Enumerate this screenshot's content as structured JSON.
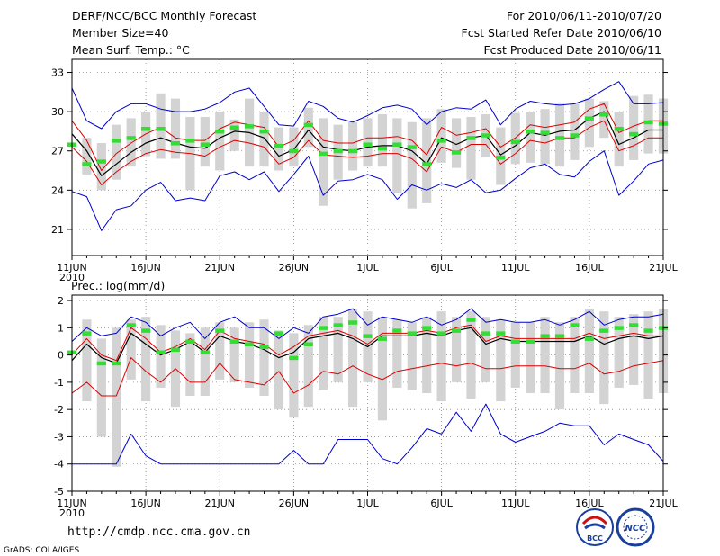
{
  "header": {
    "title": "DERF/NCC/BCC Monthly Forecast",
    "member_size": "Member Size=40",
    "variable": "Mean Surf. Temp.: °C",
    "period": "For 2010/06/11-2010/07/20",
    "fcst_started": "Fcst Started Refer Date 2010/06/10",
    "fcst_produced": "Fcst Produced Date 2010/06/11"
  },
  "footer": {
    "url": "http://cmdp.ncc.cma.gov.cn",
    "grads": "GrADS: COLA/IGES",
    "logo_left_text": "BCC",
    "logo_right_text": "NCC"
  },
  "colors": {
    "envelope": "#0000cc",
    "spread": "#dd0000",
    "mean": "#000000",
    "box": "#d3d3d3",
    "marker": "#33dd33",
    "grid": "#888888"
  },
  "chart_data": [
    {
      "type": "line",
      "title": "Mean Surf. Temp.: °C",
      "x_tick_labels": [
        "11JUN",
        "16JUN",
        "21JUN",
        "26JUN",
        "1JUL",
        "6JUL",
        "11JUL",
        "16JUL",
        "21JUL"
      ],
      "x_year_label": "2010",
      "x_range": [
        0,
        40
      ],
      "y_range": [
        19,
        34
      ],
      "y_ticks": [
        21,
        24,
        27,
        30,
        33
      ],
      "y_tick_labels": [
        "21",
        "24",
        "27",
        "30",
        "33"
      ],
      "grid": true,
      "series": [
        {
          "name": "max",
          "role": "envelope",
          "values": [
            31.8,
            29.3,
            28.7,
            30.0,
            30.6,
            30.6,
            30.2,
            30.0,
            30.0,
            30.2,
            30.7,
            31.5,
            31.8,
            30.4,
            29.0,
            28.9,
            30.8,
            30.4,
            29.5,
            29.2,
            29.7,
            30.3,
            30.5,
            30.2,
            29.0,
            30.0,
            30.3,
            30.2,
            30.9,
            29.0,
            30.2,
            30.8,
            30.6,
            30.5,
            30.6,
            31.0,
            31.7,
            32.3,
            30.6,
            30.6,
            30.7
          ]
        },
        {
          "name": "upper",
          "role": "spread",
          "values": [
            29.3,
            27.8,
            25.5,
            26.8,
            27.6,
            28.3,
            28.8,
            28.0,
            27.8,
            27.8,
            28.7,
            29.2,
            29.0,
            28.8,
            27.3,
            27.8,
            29.3,
            27.8,
            27.6,
            27.6,
            28.0,
            28.0,
            28.1,
            27.8,
            26.7,
            28.8,
            28.2,
            28.4,
            28.7,
            27.3,
            28.0,
            29.0,
            28.8,
            29.0,
            29.2,
            30.2,
            30.6,
            28.4,
            28.9,
            29.3,
            29.3
          ]
        },
        {
          "name": "mean",
          "role": "mean",
          "values": [
            28.3,
            27.0,
            25.1,
            26.0,
            26.9,
            27.6,
            28.0,
            27.6,
            27.3,
            27.2,
            28.0,
            28.5,
            28.4,
            28.0,
            26.6,
            27.1,
            28.6,
            27.3,
            27.1,
            27.0,
            27.3,
            27.4,
            27.4,
            27.0,
            26.0,
            28.0,
            27.5,
            28.0,
            28.2,
            26.7,
            27.4,
            28.4,
            28.2,
            28.5,
            28.6,
            29.5,
            30.0,
            27.5,
            28.0,
            28.6,
            28.6
          ]
        },
        {
          "name": "lower",
          "role": "spread",
          "values": [
            27.3,
            26.2,
            24.4,
            25.4,
            26.2,
            26.8,
            27.1,
            26.9,
            26.8,
            26.6,
            27.3,
            27.8,
            27.6,
            27.3,
            26.0,
            26.5,
            27.8,
            26.7,
            26.6,
            26.5,
            26.6,
            26.8,
            26.8,
            26.4,
            25.4,
            27.3,
            26.9,
            27.5,
            27.5,
            26.0,
            26.8,
            27.8,
            27.6,
            28.0,
            28.0,
            28.8,
            29.3,
            27.0,
            27.4,
            28.0,
            28.0
          ]
        },
        {
          "name": "min",
          "role": "envelope",
          "values": [
            23.9,
            23.5,
            20.9,
            22.5,
            22.8,
            24.0,
            24.6,
            23.2,
            23.4,
            23.2,
            25.1,
            25.4,
            24.8,
            25.4,
            23.9,
            25.2,
            26.6,
            23.6,
            24.7,
            24.8,
            25.2,
            24.8,
            23.3,
            24.4,
            24.0,
            24.5,
            24.2,
            24.8,
            23.8,
            24.0,
            24.9,
            25.7,
            26.0,
            25.2,
            25.0,
            26.2,
            27.0,
            23.6,
            24.7,
            26.0,
            26.3
          ]
        },
        {
          "name": "box_top",
          "role": "box",
          "values": [
            null,
            28.0,
            27.6,
            29.0,
            29.5,
            30.0,
            31.4,
            31.0,
            29.6,
            29.6,
            30.0,
            29.4,
            31.0,
            30.0,
            28.8,
            28.8,
            30.3,
            29.5,
            29.0,
            29.2,
            29.5,
            29.8,
            29.5,
            29.2,
            29.5,
            30.2,
            29.5,
            29.6,
            29.8,
            28.8,
            29.9,
            30.0,
            30.2,
            30.6,
            30.6,
            31.0,
            30.8,
            30.0,
            31.2,
            31.3,
            31.0
          ]
        },
        {
          "name": "box_bottom",
          "role": "box",
          "values": [
            null,
            25.2,
            24.0,
            24.8,
            25.8,
            26.6,
            26.4,
            26.4,
            24.0,
            25.8,
            25.5,
            27.0,
            25.8,
            25.8,
            25.5,
            25.8,
            27.3,
            22.8,
            24.8,
            25.5,
            25.8,
            25.8,
            23.8,
            22.6,
            23.0,
            26.1,
            25.7,
            24.8,
            26.5,
            24.4,
            26.0,
            26.1,
            26.0,
            25.8,
            26.3,
            27.3,
            28.0,
            25.8,
            26.3,
            26.8,
            26.8
          ]
        },
        {
          "name": "marker",
          "role": "marker",
          "values": [
            27.5,
            26.0,
            26.2,
            27.8,
            28.0,
            28.7,
            28.7,
            27.6,
            27.8,
            27.5,
            28.5,
            28.8,
            28.9,
            28.5,
            27.4,
            27.0,
            29.0,
            26.8,
            27.0,
            27.0,
            27.5,
            27.2,
            27.5,
            27.3,
            26.0,
            27.8,
            26.9,
            28.0,
            28.2,
            26.5,
            27.7,
            28.5,
            28.4,
            28.0,
            28.2,
            29.5,
            29.8,
            28.7,
            28.3,
            29.2,
            29.1
          ]
        }
      ]
    },
    {
      "type": "line",
      "title": "Prec.: log(mm/d)",
      "x_tick_labels": [
        "11JUN",
        "16JUN",
        "21JUN",
        "26JUN",
        "1JUL",
        "6JUL",
        "11JUL",
        "16JUL",
        "21JUL"
      ],
      "x_year_label": "2010",
      "x_range": [
        0,
        40
      ],
      "y_range": [
        -5,
        2.2
      ],
      "y_ticks": [
        -5,
        -4,
        -3,
        -2,
        -1,
        0,
        1,
        2
      ],
      "y_tick_labels": [
        "-5",
        "-4",
        "-3",
        "-2",
        "-1",
        "0",
        "1",
        "2"
      ],
      "grid": true,
      "series": [
        {
          "name": "max",
          "role": "envelope",
          "values": [
            0.5,
            1.0,
            0.7,
            0.8,
            1.4,
            1.2,
            0.7,
            1.0,
            1.2,
            0.6,
            1.2,
            1.4,
            1.0,
            1.0,
            0.6,
            1.0,
            0.8,
            1.4,
            1.5,
            1.7,
            1.1,
            1.4,
            1.3,
            1.2,
            1.4,
            1.1,
            1.3,
            1.7,
            1.2,
            1.3,
            1.2,
            1.2,
            1.3,
            1.1,
            1.3,
            1.6,
            1.1,
            1.3,
            1.4,
            1.4,
            1.5
          ]
        },
        {
          "name": "upper",
          "role": "spread",
          "values": [
            0.0,
            0.6,
            0.0,
            -0.2,
            1.0,
            0.6,
            0.1,
            0.3,
            0.6,
            0.2,
            0.9,
            0.6,
            0.5,
            0.4,
            0.0,
            0.3,
            0.7,
            0.8,
            0.9,
            0.7,
            0.4,
            0.8,
            0.8,
            0.8,
            0.9,
            0.8,
            1.0,
            1.1,
            0.5,
            0.7,
            0.6,
            0.6,
            0.6,
            0.6,
            0.6,
            0.8,
            0.6,
            0.7,
            0.8,
            0.7,
            0.7
          ]
        },
        {
          "name": "mean",
          "role": "mean",
          "values": [
            -0.2,
            0.4,
            -0.1,
            -0.3,
            0.8,
            0.4,
            0.0,
            0.2,
            0.5,
            0.1,
            0.7,
            0.5,
            0.4,
            0.2,
            -0.1,
            0.1,
            0.6,
            0.7,
            0.8,
            0.6,
            0.3,
            0.7,
            0.7,
            0.7,
            0.8,
            0.7,
            0.9,
            1.0,
            0.4,
            0.6,
            0.5,
            0.5,
            0.5,
            0.5,
            0.5,
            0.7,
            0.4,
            0.6,
            0.7,
            0.6,
            0.7
          ]
        },
        {
          "name": "lower",
          "role": "spread",
          "values": [
            -1.4,
            -1.0,
            -1.5,
            -1.5,
            -0.1,
            -0.6,
            -1.0,
            -0.5,
            -1.0,
            -1.0,
            -0.3,
            -0.9,
            -1.0,
            -1.1,
            -0.6,
            -1.4,
            -1.1,
            -0.6,
            -0.7,
            -0.4,
            -0.7,
            -0.9,
            -0.6,
            -0.5,
            -0.4,
            -0.3,
            -0.4,
            -0.3,
            -0.5,
            -0.5,
            -0.4,
            -0.4,
            -0.4,
            -0.5,
            -0.5,
            -0.3,
            -0.7,
            -0.6,
            -0.4,
            -0.3,
            -0.2
          ]
        },
        {
          "name": "min",
          "role": "envelope",
          "values": [
            -4.0,
            -4.0,
            -4.0,
            -4.0,
            -2.9,
            -3.7,
            -4.0,
            -4.0,
            -4.0,
            -4.0,
            -4.0,
            -4.0,
            -4.0,
            -4.0,
            -4.0,
            -3.5,
            -4.0,
            -4.0,
            -3.1,
            -3.1,
            -3.1,
            -3.8,
            -4.0,
            -3.4,
            -2.7,
            -2.9,
            -2.1,
            -2.8,
            -1.8,
            -2.9,
            -3.2,
            -3.0,
            -2.8,
            -2.5,
            -2.6,
            -2.6,
            -3.3,
            -2.9,
            -3.1,
            -3.3,
            -3.9
          ]
        },
        {
          "name": "box_top",
          "role": "box",
          "values": [
            null,
            1.3,
            0.6,
            1.0,
            1.3,
            1.4,
            1.1,
            0.9,
            0.8,
            1.0,
            1.2,
            1.0,
            1.2,
            1.3,
            0.9,
            0.8,
            1.1,
            1.4,
            1.4,
            1.7,
            1.6,
            1.4,
            1.3,
            1.2,
            1.4,
            1.6,
            1.4,
            1.6,
            1.4,
            1.3,
            1.2,
            1.2,
            1.4,
            1.2,
            1.4,
            1.7,
            1.6,
            1.4,
            1.5,
            1.6,
            1.7
          ]
        },
        {
          "name": "box_bottom",
          "role": "box",
          "values": [
            null,
            -1.7,
            -3.0,
            -4.1,
            -0.9,
            -1.7,
            -1.2,
            -1.9,
            -1.5,
            -1.5,
            -0.9,
            -1.0,
            -1.2,
            -1.5,
            -2.0,
            -2.3,
            -1.9,
            -1.3,
            -1.0,
            -1.9,
            -1.0,
            -2.4,
            -1.2,
            -1.3,
            -1.4,
            -1.7,
            -1.0,
            -1.6,
            -1.0,
            -1.7,
            -1.2,
            -1.4,
            -1.4,
            -2.0,
            -1.4,
            -1.4,
            -1.8,
            -1.2,
            -1.1,
            -1.6,
            -1.4
          ]
        },
        {
          "name": "marker",
          "role": "marker",
          "values": [
            0.1,
            0.8,
            -0.3,
            -0.3,
            1.1,
            0.9,
            0.1,
            0.2,
            0.5,
            0.1,
            0.9,
            0.5,
            0.4,
            0.3,
            0.8,
            -0.1,
            0.4,
            1.0,
            1.1,
            1.2,
            0.7,
            0.6,
            0.9,
            0.8,
            1.0,
            0.8,
            0.9,
            1.3,
            0.8,
            0.8,
            0.5,
            0.5,
            0.7,
            0.7,
            1.1,
            0.6,
            0.9,
            1.0,
            1.1,
            0.9,
            1.0
          ]
        }
      ]
    }
  ]
}
